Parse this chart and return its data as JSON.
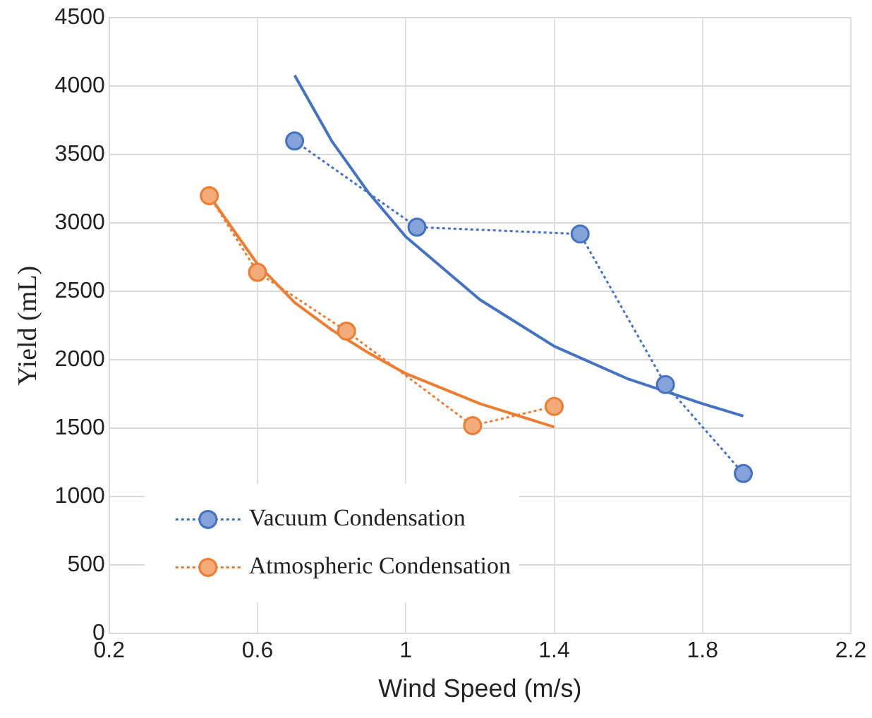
{
  "chart_data": {
    "type": "scatter",
    "xlabel": "Wind Speed (m/s)",
    "ylabel": "Yield (mL)",
    "xlim": [
      0.2,
      2.2
    ],
    "xticks": [
      0.2,
      0.6,
      1,
      1.4,
      1.8,
      2.2
    ],
    "ylim": [
      0,
      4500
    ],
    "yticks": [
      0,
      500,
      1000,
      1500,
      2000,
      2500,
      3000,
      3500,
      4000,
      4500
    ],
    "grid": true,
    "legend": "bottom left",
    "series": [
      {
        "name": "Vacuum Condensation",
        "type": "line",
        "color": "#4472c4",
        "marker": "circle",
        "line_style": "dotted",
        "x": [
          0.7,
          1.03,
          1.47,
          1.7,
          1.91
        ],
        "values": [
          3600,
          2970,
          2920,
          1820,
          1170
        ]
      },
      {
        "name": "Atmospheric Condensation",
        "type": "line",
        "color": "#ed7d31",
        "marker": "circle",
        "line_style": "dotted",
        "x": [
          0.47,
          0.6,
          0.84,
          1.18,
          1.4
        ],
        "values": [
          3200,
          2640,
          2210,
          1520,
          1660
        ]
      },
      {
        "type": "line",
        "color": "#4472c4",
        "marker": "none",
        "line_style": "solid",
        "x": [
          0.7,
          0.8,
          0.9,
          1.0,
          1.2,
          1.4,
          1.6,
          1.8,
          1.91
        ],
        "values": [
          4080,
          3600,
          3220,
          2900,
          2440,
          2100,
          1860,
          1680,
          1590
        ]
      },
      {
        "type": "line",
        "color": "#ed7d31",
        "marker": "none",
        "line_style": "solid",
        "x": [
          0.47,
          0.6,
          0.7,
          0.8,
          0.9,
          1.0,
          1.2,
          1.4
        ],
        "values": [
          3200,
          2700,
          2420,
          2220,
          2050,
          1900,
          1680,
          1510
        ]
      }
    ]
  }
}
